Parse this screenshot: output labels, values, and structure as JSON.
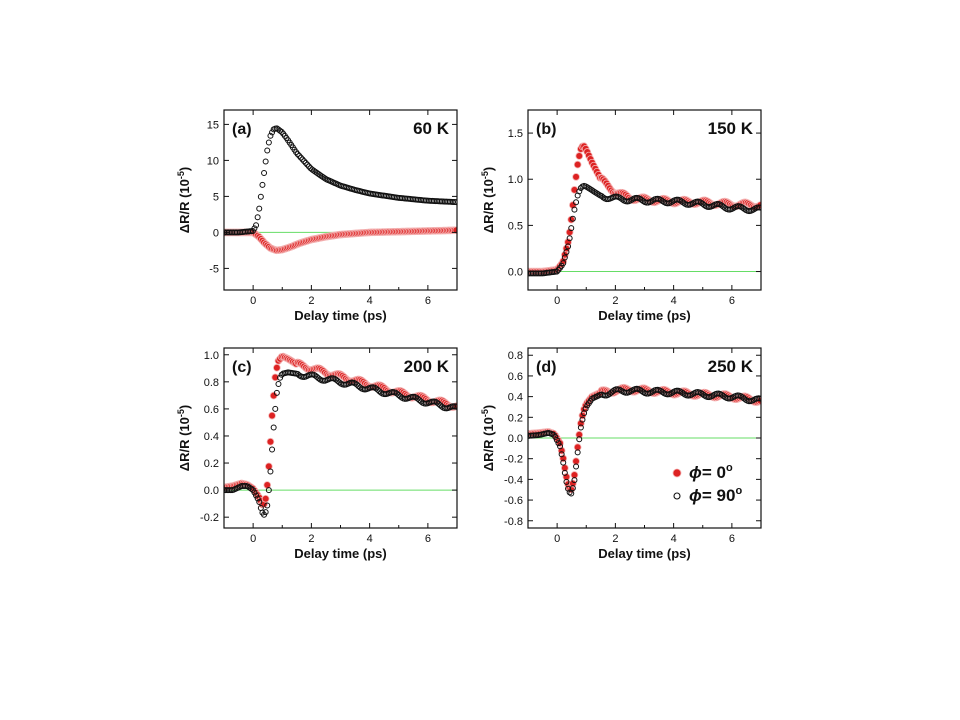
{
  "chart_data": [
    {
      "type": "scatter",
      "panel_label": "(a)",
      "temperature_label": "60 K",
      "xlabel": "Delay time (ps)",
      "ylabel": "ΔR/R (10",
      "ylabel_exp": "-5",
      "ylabel_close": ")",
      "xlim": [
        -1,
        7
      ],
      "ylim": [
        -8,
        17
      ],
      "xticks": [
        0,
        2,
        4,
        6
      ],
      "yticks": [
        -5,
        0,
        5,
        10,
        15
      ],
      "zero_line_color": "#66dd66",
      "series": [
        {
          "marker": "filled-red",
          "color": "#dd2222",
          "x": [
            -1.0,
            -0.5,
            0.0,
            0.2,
            0.4,
            0.6,
            0.8,
            1.0,
            1.3,
            1.6,
            2.0,
            2.5,
            3.0,
            4.0,
            5.0,
            6.0,
            7.0
          ],
          "y": [
            0.0,
            0.0,
            0.0,
            -0.6,
            -1.5,
            -2.2,
            -2.5,
            -2.4,
            -2.0,
            -1.5,
            -1.0,
            -0.6,
            -0.3,
            0.0,
            0.1,
            0.2,
            0.3
          ]
        },
        {
          "marker": "open-black",
          "color": "#111111",
          "x": [
            -1.0,
            -0.5,
            0.0,
            0.1,
            0.2,
            0.3,
            0.4,
            0.5,
            0.6,
            0.7,
            0.8,
            1.0,
            1.2,
            1.5,
            2.0,
            2.5,
            3.0,
            3.5,
            4.0,
            5.0,
            6.0,
            7.0
          ],
          "y": [
            0.0,
            0.0,
            0.2,
            1.0,
            3.0,
            6.0,
            9.0,
            11.8,
            13.5,
            14.3,
            14.5,
            13.9,
            12.8,
            11.0,
            8.8,
            7.4,
            6.5,
            5.9,
            5.4,
            4.8,
            4.4,
            4.2
          ]
        }
      ]
    },
    {
      "type": "scatter",
      "panel_label": "(b)",
      "temperature_label": "150 K",
      "xlabel": "Delay time (ps)",
      "ylabel": "ΔR/R (10",
      "ylabel_exp": "-5",
      "ylabel_close": ")",
      "xlim": [
        -1,
        7
      ],
      "ylim": [
        -0.2,
        1.75
      ],
      "xticks": [
        0,
        2,
        4,
        6
      ],
      "yticks": [
        0.0,
        0.5,
        1.0,
        1.5
      ],
      "zero_line_color": "#66dd66",
      "series": [
        {
          "marker": "filled-red",
          "color": "#dd2222",
          "x": [
            -1.0,
            -0.5,
            0.0,
            0.2,
            0.4,
            0.5,
            0.6,
            0.7,
            0.8,
            0.9,
            1.0,
            1.2,
            1.5,
            2.0,
            2.5,
            3.0,
            4.0,
            5.0,
            6.0,
            7.0
          ],
          "y": [
            0.0,
            0.0,
            0.02,
            0.1,
            0.35,
            0.6,
            0.9,
            1.15,
            1.32,
            1.37,
            1.32,
            1.18,
            1.0,
            0.86,
            0.8,
            0.78,
            0.76,
            0.75,
            0.73,
            0.72
          ]
        },
        {
          "marker": "open-black",
          "color": "#111111",
          "x": [
            -1.0,
            -0.5,
            0.0,
            0.2,
            0.4,
            0.5,
            0.6,
            0.7,
            0.8,
            0.9,
            1.0,
            1.2,
            1.5,
            2.0,
            2.5,
            3.0,
            4.0,
            5.0,
            6.0,
            7.0
          ],
          "y": [
            -0.02,
            -0.02,
            0.0,
            0.08,
            0.3,
            0.5,
            0.68,
            0.82,
            0.9,
            0.93,
            0.92,
            0.88,
            0.82,
            0.79,
            0.78,
            0.77,
            0.76,
            0.73,
            0.69,
            0.67
          ]
        }
      ]
    },
    {
      "type": "scatter",
      "panel_label": "(c)",
      "temperature_label": "200 K",
      "xlabel": "Delay time (ps)",
      "ylabel": "ΔR/R (10",
      "ylabel_exp": "-5",
      "ylabel_close": ")",
      "xlim": [
        -1,
        7
      ],
      "ylim": [
        -0.28,
        1.05
      ],
      "xticks": [
        0,
        2,
        4,
        6
      ],
      "yticks": [
        -0.2,
        0.0,
        0.2,
        0.4,
        0.6,
        0.8,
        1.0
      ],
      "zero_line_color": "#66dd66",
      "series": [
        {
          "marker": "filled-red",
          "color": "#dd2222",
          "x": [
            -1.0,
            -0.7,
            -0.4,
            -0.2,
            0.0,
            0.2,
            0.35,
            0.45,
            0.55,
            0.65,
            0.75,
            0.85,
            1.0,
            1.2,
            1.5,
            2.0,
            3.0,
            4.0,
            5.0,
            6.0,
            7.0
          ],
          "y": [
            0.02,
            0.03,
            0.05,
            0.04,
            0.01,
            -0.05,
            -0.12,
            -0.05,
            0.2,
            0.55,
            0.82,
            0.95,
            0.99,
            0.97,
            0.93,
            0.9,
            0.84,
            0.78,
            0.72,
            0.67,
            0.62
          ]
        },
        {
          "marker": "open-black",
          "color": "#111111",
          "x": [
            -1.0,
            -0.7,
            -0.4,
            -0.2,
            0.0,
            0.2,
            0.3,
            0.4,
            0.5,
            0.6,
            0.7,
            0.8,
            0.9,
            1.0,
            1.2,
            1.5,
            2.0,
            3.0,
            4.0,
            5.0,
            6.0,
            7.0
          ],
          "y": [
            0.0,
            0.0,
            0.03,
            0.03,
            0.0,
            -0.08,
            -0.16,
            -0.19,
            -0.1,
            0.15,
            0.45,
            0.7,
            0.82,
            0.86,
            0.87,
            0.86,
            0.84,
            0.8,
            0.75,
            0.7,
            0.65,
            0.6
          ]
        }
      ]
    },
    {
      "type": "scatter",
      "panel_label": "(d)",
      "temperature_label": "250 K",
      "xlabel": "Delay time (ps)",
      "ylabel": "ΔR/R (10",
      "ylabel_exp": "-5",
      "ylabel_close": ")",
      "xlim": [
        -1,
        7
      ],
      "ylim": [
        -0.87,
        0.87
      ],
      "xticks": [
        0,
        2,
        4,
        6
      ],
      "yticks": [
        -0.8,
        -0.6,
        -0.4,
        -0.2,
        0.0,
        0.2,
        0.4,
        0.6,
        0.8
      ],
      "zero_line_color": "#66dd66",
      "legend": [
        {
          "marker": "filled-red",
          "phi_symbol": "ϕ",
          "label": "= 0",
          "sup": "o"
        },
        {
          "marker": "open-black",
          "phi_symbol": "ϕ",
          "label": "= 90",
          "sup": "o"
        }
      ],
      "legend_position": "bottom-right",
      "series": [
        {
          "marker": "filled-red",
          "color": "#dd2222",
          "x": [
            -1.0,
            -0.6,
            -0.3,
            -0.1,
            0.1,
            0.2,
            0.3,
            0.4,
            0.5,
            0.6,
            0.7,
            0.8,
            0.9,
            1.0,
            1.2,
            1.5,
            2.0,
            2.5,
            3.0,
            4.0,
            5.0,
            6.0,
            7.0
          ],
          "y": [
            0.04,
            0.05,
            0.06,
            0.04,
            -0.05,
            -0.18,
            -0.35,
            -0.48,
            -0.5,
            -0.35,
            -0.1,
            0.12,
            0.26,
            0.33,
            0.4,
            0.44,
            0.46,
            0.47,
            0.46,
            0.44,
            0.42,
            0.4,
            0.36
          ]
        },
        {
          "marker": "open-black",
          "color": "#111111",
          "x": [
            -1.0,
            -0.6,
            -0.3,
            -0.1,
            0.1,
            0.2,
            0.3,
            0.4,
            0.5,
            0.6,
            0.7,
            0.8,
            0.9,
            1.0,
            1.2,
            1.5,
            2.0,
            2.5,
            3.0,
            4.0,
            5.0,
            6.0,
            7.0
          ],
          "y": [
            0.02,
            0.03,
            0.05,
            0.03,
            -0.08,
            -0.22,
            -0.4,
            -0.52,
            -0.54,
            -0.4,
            -0.15,
            0.08,
            0.22,
            0.3,
            0.38,
            0.42,
            0.45,
            0.46,
            0.45,
            0.44,
            0.42,
            0.4,
            0.36
          ]
        }
      ]
    }
  ]
}
